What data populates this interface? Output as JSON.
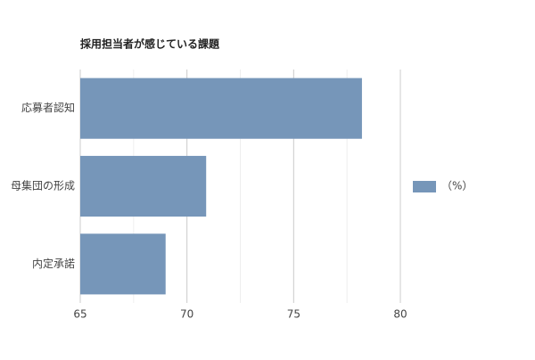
{
  "chart_data": {
    "type": "bar",
    "orientation": "horizontal",
    "title": "採用担当者が感じている課題",
    "categories": [
      "応募者認知",
      "母集団の形成",
      "内定承諾"
    ],
    "series": [
      {
        "name": "（%）",
        "color": "#7696b9",
        "values": [
          78.2,
          70.9,
          69.0
        ]
      }
    ],
    "xlim": [
      65,
      80
    ],
    "xticks": [
      65,
      70,
      75,
      80
    ],
    "minor_xticks": [
      67.5,
      72.5,
      77.5
    ],
    "grid": true,
    "legend": "right"
  }
}
